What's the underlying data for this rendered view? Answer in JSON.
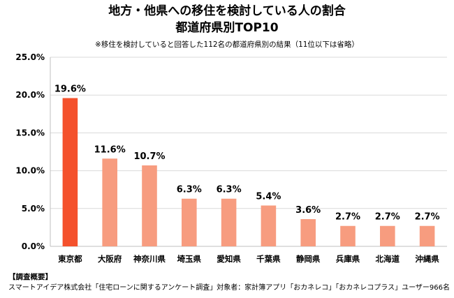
{
  "header": {
    "title_line1": "地方・他県への移住を検討している人の割合",
    "title_line2": "都道府県別TOP10",
    "subtitle": "※移住を検討していると回答した112名の都道府県別の結果（11位以下は省略）"
  },
  "chart_data": {
    "type": "bar",
    "title": "地方・他県への移住を検討している人の割合 都道府県別TOP10",
    "subtitle": "※移住を検討していると回答した112名の都道府県別の結果（11位以下は省略）",
    "categories": [
      "東京都",
      "大阪府",
      "神奈川県",
      "埼玉県",
      "愛知県",
      "千葉県",
      "静岡県",
      "兵庫県",
      "北海道",
      "沖縄県"
    ],
    "values": [
      19.6,
      11.6,
      10.7,
      6.3,
      6.3,
      5.4,
      3.6,
      2.7,
      2.7,
      2.7
    ],
    "data_labels": [
      "19.6%",
      "11.6%",
      "10.7%",
      "6.3%",
      "6.3%",
      "5.4%",
      "3.6%",
      "2.7%",
      "2.7%",
      "2.7%"
    ],
    "ylim": [
      0,
      25
    ],
    "yticks": [
      0,
      5,
      10,
      15,
      20,
      25
    ],
    "ytick_labels": [
      "0.0%",
      "5.0%",
      "10.0%",
      "15.0%",
      "20.0%",
      "25.0%"
    ],
    "xlabel": "",
    "ylabel": "",
    "grid": true,
    "colors": {
      "highlight": "#f4512c",
      "bar": "#f79c7f",
      "grid": "#d9d9d9",
      "axis": "#bfbfbf"
    }
  },
  "footer": {
    "heading": "【調査概要】",
    "text": "スマートアイデア株式会社「住宅ローンに関するアンケート調査」対象者：家計簿アプリ「おカネレコ」「おカネレコプラス」ユーザー966名"
  }
}
